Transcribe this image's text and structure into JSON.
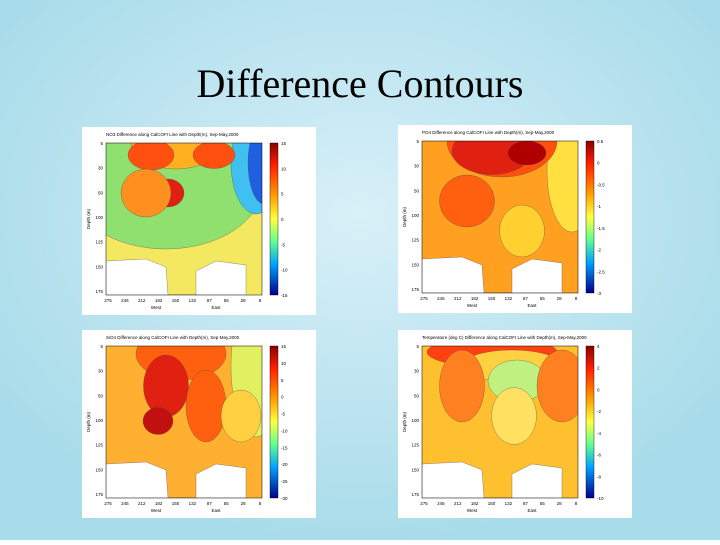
{
  "slide": {
    "title": "Difference Contours"
  },
  "panels": [
    {
      "title": "NO3 Difference along CalCOFI Line with Depth(m), Sep-May,2000",
      "x_ticks": [
        "275",
        "245",
        "212",
        "182",
        "150",
        "132",
        "87",
        "55",
        "28",
        "8"
      ],
      "x_labels": [
        "West",
        "East"
      ],
      "y_label": "Depth (m)",
      "y_ticks": [
        "5",
        "30",
        "50",
        "100",
        "125",
        "150",
        "175"
      ],
      "colorbar_ticks": [
        "15",
        "10",
        "5",
        "0",
        "-5",
        "-10",
        "-15"
      ]
    },
    {
      "title": "PO4 Difference along CalCOFI Line with Depth(m), Sep-May,2000",
      "x_ticks": [
        "275",
        "245",
        "212",
        "182",
        "150",
        "132",
        "87",
        "55",
        "28",
        "8"
      ],
      "x_labels": [
        "West",
        "East"
      ],
      "y_label": "Depth (m)",
      "y_ticks": [
        "5",
        "30",
        "50",
        "100",
        "125",
        "150",
        "175"
      ],
      "colorbar_ticks": [
        "0.5",
        "0",
        "-0.5",
        "-1",
        "-1.5",
        "-2",
        "-2.5",
        "-3"
      ]
    },
    {
      "title": "SiO4 Difference along CalCOFI Line with Depth(m), Sep-May,2000",
      "x_ticks": [
        "275",
        "245",
        "212",
        "182",
        "150",
        "132",
        "87",
        "55",
        "28",
        "8"
      ],
      "x_labels": [
        "West",
        "East"
      ],
      "y_label": "Depth (m)",
      "y_ticks": [
        "5",
        "30",
        "50",
        "100",
        "125",
        "150",
        "175"
      ],
      "colorbar_ticks": [
        "15",
        "10",
        "5",
        "0",
        "-5",
        "-10",
        "-15",
        "-20",
        "-25",
        "-30"
      ]
    },
    {
      "title": "Temperature (deg C) Difference along CalCOFI Line with Depth(m), Sep-May,2000",
      "x_ticks": [
        "275",
        "245",
        "212",
        "182",
        "150",
        "132",
        "87",
        "55",
        "28",
        "8"
      ],
      "x_labels": [
        "West",
        "East"
      ],
      "y_label": "Depth (m)",
      "y_ticks": [
        "5",
        "30",
        "50",
        "100",
        "125",
        "150",
        "175"
      ],
      "colorbar_ticks": [
        "4",
        "2",
        "0",
        "-2",
        "-4",
        "-6",
        "-8",
        "-10"
      ]
    }
  ]
}
